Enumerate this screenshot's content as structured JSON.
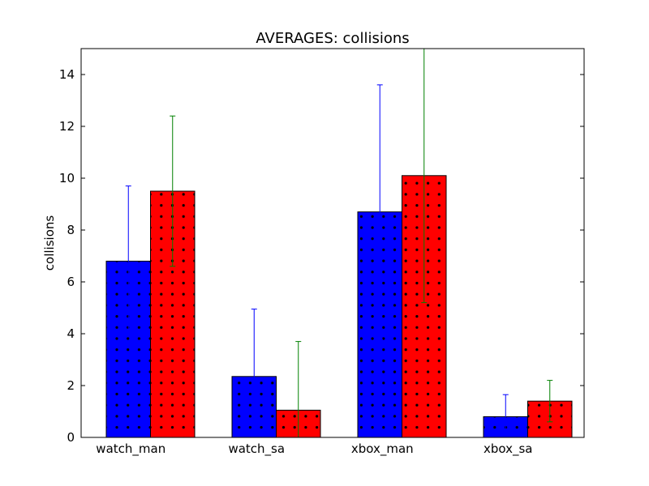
{
  "chart_data": {
    "type": "bar",
    "title": "AVERAGES: collisions",
    "xlabel": "",
    "ylabel": "collisions",
    "categories": [
      "watch_man",
      "watch_sa",
      "xbox_man",
      "xbox_sa"
    ],
    "ylim": [
      0,
      15
    ],
    "yticks": [
      "0",
      "2",
      "4",
      "6",
      "8",
      "10",
      "12",
      "14"
    ],
    "grid": false,
    "series": [
      {
        "color": "#0000ff",
        "error_color": "#0000ff",
        "values": [
          6.8,
          2.35,
          8.7,
          0.8
        ],
        "errors": [
          2.9,
          2.6,
          4.9,
          0.85
        ]
      },
      {
        "color": "#ff0000",
        "error_color": "#008000",
        "values": [
          9.5,
          1.05,
          10.1,
          1.4
        ],
        "errors": [
          2.9,
          2.65,
          4.9,
          0.8
        ]
      }
    ]
  }
}
